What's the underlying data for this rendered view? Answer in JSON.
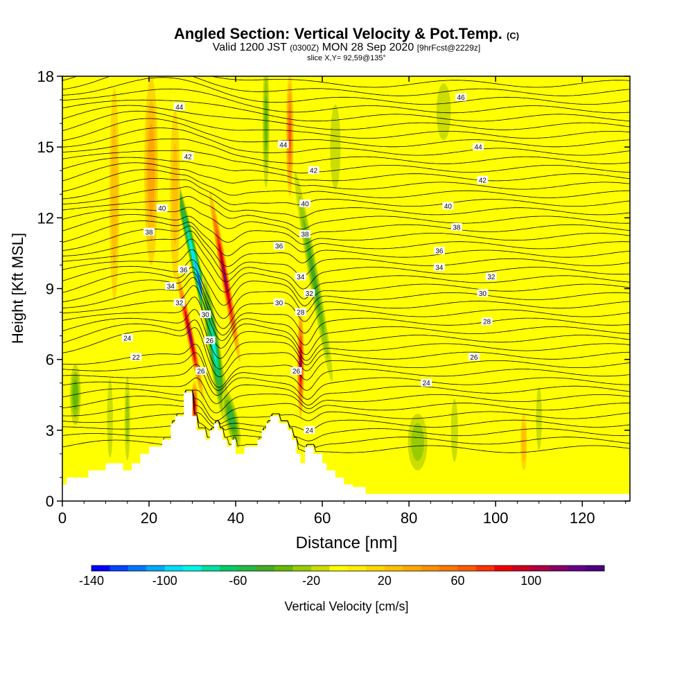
{
  "title": {
    "main": "Angled Section: Vertical Velocity & Pot.Temp.",
    "copyright": "(C)",
    "valid_prefix": "Valid 1200 JST",
    "utc": "(0300Z)",
    "date": "MON 28 Sep 2020",
    "forecast": "[9hrFcst@2229z]",
    "slice": "slice X,Y= 92,59@135°"
  },
  "colors": {
    "background_field": "#ffff00",
    "grid_border": "#000000",
    "contour": "#000000"
  },
  "chart_data": {
    "type": "heatmap",
    "xlabel": "Distance [nm]",
    "ylabel": "Height [Kft MSL]",
    "xlim": [
      0,
      131
    ],
    "ylim": [
      0,
      18
    ],
    "x_ticks": [
      0,
      20,
      40,
      60,
      80,
      100,
      120
    ],
    "y_ticks": [
      0,
      3,
      6,
      9,
      12,
      15,
      18
    ],
    "colorbar": {
      "label": "Vertical Velocity [cm/s]",
      "range": [
        -140,
        140
      ],
      "step": 10,
      "tick_labels": [
        "-140",
        "-100",
        "-60",
        "-20",
        "20",
        "60",
        "100"
      ],
      "tick_values": [
        -140,
        -100,
        -60,
        -20,
        20,
        60,
        100
      ],
      "colors": [
        "#0000ff",
        "#0044ff",
        "#0077ff",
        "#00aaff",
        "#00ddff",
        "#00f5e8",
        "#00e0a0",
        "#00cc66",
        "#22bb44",
        "#44aa22",
        "#66bb00",
        "#99cc00",
        "#ccdd00",
        "#ffff00",
        "#ffee00",
        "#ffd700",
        "#ffc000",
        "#ffa800",
        "#ff9000",
        "#ff7800",
        "#ff5a00",
        "#ff3000",
        "#ee0000",
        "#cc0022",
        "#aa0044",
        "#880066",
        "#660088",
        "#4b0082"
      ]
    },
    "terrain_profile": {
      "x": [
        0,
        1,
        1,
        6,
        6,
        10,
        10,
        14,
        14,
        16,
        16,
        18,
        18,
        20,
        20,
        23,
        23,
        25,
        25,
        26,
        26,
        28,
        28,
        30,
        30,
        31,
        31,
        33,
        33,
        34,
        34,
        35,
        35,
        36,
        36,
        37,
        37,
        38,
        38,
        39,
        39,
        40,
        40,
        42,
        42,
        45,
        45,
        46,
        46,
        47,
        47,
        48,
        48,
        50,
        50,
        52,
        52,
        53,
        53,
        54,
        54,
        55,
        55,
        56,
        56,
        58,
        58,
        60,
        60,
        61,
        61,
        63,
        63,
        65,
        65,
        67,
        67,
        70,
        70,
        131
      ],
      "y": [
        0.7,
        0.7,
        1.0,
        1.0,
        1.3,
        1.3,
        1.6,
        1.6,
        1.3,
        1.3,
        1.6,
        1.6,
        2.0,
        2.0,
        2.3,
        2.3,
        2.6,
        2.6,
        3.3,
        3.3,
        3.6,
        3.6,
        4.6,
        4.6,
        3.6,
        3.6,
        3.0,
        3.0,
        2.6,
        2.6,
        3.0,
        3.0,
        3.3,
        3.3,
        3.0,
        3.0,
        2.6,
        2.6,
        2.3,
        2.3,
        2.6,
        2.6,
        2.0,
        2.0,
        2.3,
        2.3,
        2.6,
        2.6,
        3.0,
        3.0,
        3.3,
        3.3,
        3.6,
        3.6,
        3.3,
        3.3,
        3.0,
        3.0,
        2.6,
        2.6,
        2.0,
        2.0,
        1.6,
        1.6,
        2.3,
        2.3,
        2.0,
        2.0,
        1.6,
        1.6,
        1.3,
        1.3,
        1.0,
        1.0,
        0.7,
        0.7,
        0.6,
        0.6,
        0.3,
        0.3
      ]
    },
    "vertical_velocity_features": [
      {
        "x": 29.5,
        "y": 7.0,
        "sx": 0.9,
        "sy": 3.0,
        "value": 120,
        "tilt": -0.35
      },
      {
        "x": 30.5,
        "y": 4.0,
        "sx": 0.9,
        "sy": 1.2,
        "value": 100,
        "tilt": 0
      },
      {
        "x": 32.0,
        "y": 9.0,
        "sx": 1.2,
        "sy": 6.0,
        "value": -120,
        "tilt": -0.4
      },
      {
        "x": 37.5,
        "y": 9.5,
        "sx": 1.0,
        "sy": 4.0,
        "value": 120,
        "tilt": -0.3
      },
      {
        "x": 35.0,
        "y": 6.5,
        "sx": 1.6,
        "sy": 3.5,
        "value": -90,
        "tilt": -0.25
      },
      {
        "x": 39.0,
        "y": 3.5,
        "sx": 1.8,
        "sy": 1.5,
        "value": -60,
        "tilt": -0.4
      },
      {
        "x": 55.0,
        "y": 5.8,
        "sx": 0.9,
        "sy": 2.5,
        "value": 110,
        "tilt": 0
      },
      {
        "x": 58.0,
        "y": 9.5,
        "sx": 1.4,
        "sy": 5.5,
        "value": -50,
        "tilt": -0.3
      },
      {
        "x": 52.5,
        "y": 15.5,
        "sx": 1.0,
        "sy": 3.0,
        "value": 70,
        "tilt": 0
      },
      {
        "x": 47.0,
        "y": 16.0,
        "sx": 1.0,
        "sy": 3.5,
        "value": -40,
        "tilt": 0
      },
      {
        "x": 20.5,
        "y": 14.0,
        "sx": 2.0,
        "sy": 5.0,
        "value": 45,
        "tilt": 0
      },
      {
        "x": 12.0,
        "y": 13.0,
        "sx": 1.5,
        "sy": 6.0,
        "value": 35,
        "tilt": 0
      },
      {
        "x": 3.0,
        "y": 4.5,
        "sx": 1.6,
        "sy": 1.6,
        "value": -45,
        "tilt": 0
      },
      {
        "x": 11.0,
        "y": 3.5,
        "sx": 1.0,
        "sy": 2.5,
        "value": -25,
        "tilt": 0
      },
      {
        "x": 15.0,
        "y": 3.5,
        "sx": 0.9,
        "sy": 2.5,
        "value": -30,
        "tilt": 0
      },
      {
        "x": 82.0,
        "y": 2.5,
        "sx": 3.0,
        "sy": 1.6,
        "value": -35,
        "tilt": 0
      },
      {
        "x": 90.5,
        "y": 3.0,
        "sx": 1.2,
        "sy": 2.0,
        "value": -25,
        "tilt": 0
      },
      {
        "x": 106.5,
        "y": 2.5,
        "sx": 1.0,
        "sy": 1.6,
        "value": 35,
        "tilt": 0
      },
      {
        "x": 110.0,
        "y": 3.5,
        "sx": 1.0,
        "sy": 2.0,
        "value": -25,
        "tilt": 0
      },
      {
        "x": 88.0,
        "y": 16.5,
        "sx": 2.5,
        "sy": 1.8,
        "value": -25,
        "tilt": 0
      },
      {
        "x": 63.0,
        "y": 15.0,
        "sx": 2.0,
        "sy": 3.0,
        "value": -20,
        "tilt": 0
      },
      {
        "x": 26.0,
        "y": 13.0,
        "sx": 1.6,
        "sy": 5.0,
        "value": 30,
        "tilt": 0
      }
    ],
    "potential_temperature_contours": {
      "levels": [
        22,
        24,
        26,
        28,
        30,
        32,
        34,
        36,
        38,
        40,
        42,
        44,
        46
      ],
      "labels": [
        {
          "text": "22",
          "x": 17,
          "y": 6.1
        },
        {
          "text": "24",
          "x": 15,
          "y": 6.9
        },
        {
          "text": "24",
          "x": 84,
          "y": 5.0
        },
        {
          "text": "24",
          "x": 57,
          "y": 3.0
        },
        {
          "text": "26",
          "x": 34,
          "y": 6.8
        },
        {
          "text": "26",
          "x": 32,
          "y": 5.5
        },
        {
          "text": "26",
          "x": 54,
          "y": 5.5
        },
        {
          "text": "26",
          "x": 95,
          "y": 6.1
        },
        {
          "text": "28",
          "x": 55,
          "y": 8.0
        },
        {
          "text": "28",
          "x": 98,
          "y": 7.6
        },
        {
          "text": "30",
          "x": 33,
          "y": 7.9
        },
        {
          "text": "30",
          "x": 50,
          "y": 8.4
        },
        {
          "text": "30",
          "x": 97,
          "y": 8.8
        },
        {
          "text": "32",
          "x": 27,
          "y": 8.4
        },
        {
          "text": "32",
          "x": 57,
          "y": 8.8
        },
        {
          "text": "32",
          "x": 99,
          "y": 9.5
        },
        {
          "text": "34",
          "x": 25,
          "y": 9.1
        },
        {
          "text": "34",
          "x": 55,
          "y": 9.5
        },
        {
          "text": "34",
          "x": 87,
          "y": 9.9
        },
        {
          "text": "36",
          "x": 28,
          "y": 9.8
        },
        {
          "text": "36",
          "x": 50,
          "y": 10.8
        },
        {
          "text": "36",
          "x": 87,
          "y": 10.6
        },
        {
          "text": "38",
          "x": 20,
          "y": 11.4
        },
        {
          "text": "38",
          "x": 56,
          "y": 11.3
        },
        {
          "text": "38",
          "x": 91,
          "y": 11.6
        },
        {
          "text": "40",
          "x": 23,
          "y": 12.4
        },
        {
          "text": "40",
          "x": 56,
          "y": 12.6
        },
        {
          "text": "40",
          "x": 89,
          "y": 12.5
        },
        {
          "text": "42",
          "x": 29,
          "y": 14.6
        },
        {
          "text": "42",
          "x": 58,
          "y": 14.0
        },
        {
          "text": "42",
          "x": 97,
          "y": 13.6
        },
        {
          "text": "44",
          "x": 27,
          "y": 16.7
        },
        {
          "text": "44",
          "x": 51,
          "y": 15.1
        },
        {
          "text": "44",
          "x": 96,
          "y": 15.0
        },
        {
          "text": "46",
          "x": 92,
          "y": 17.1
        }
      ]
    }
  }
}
